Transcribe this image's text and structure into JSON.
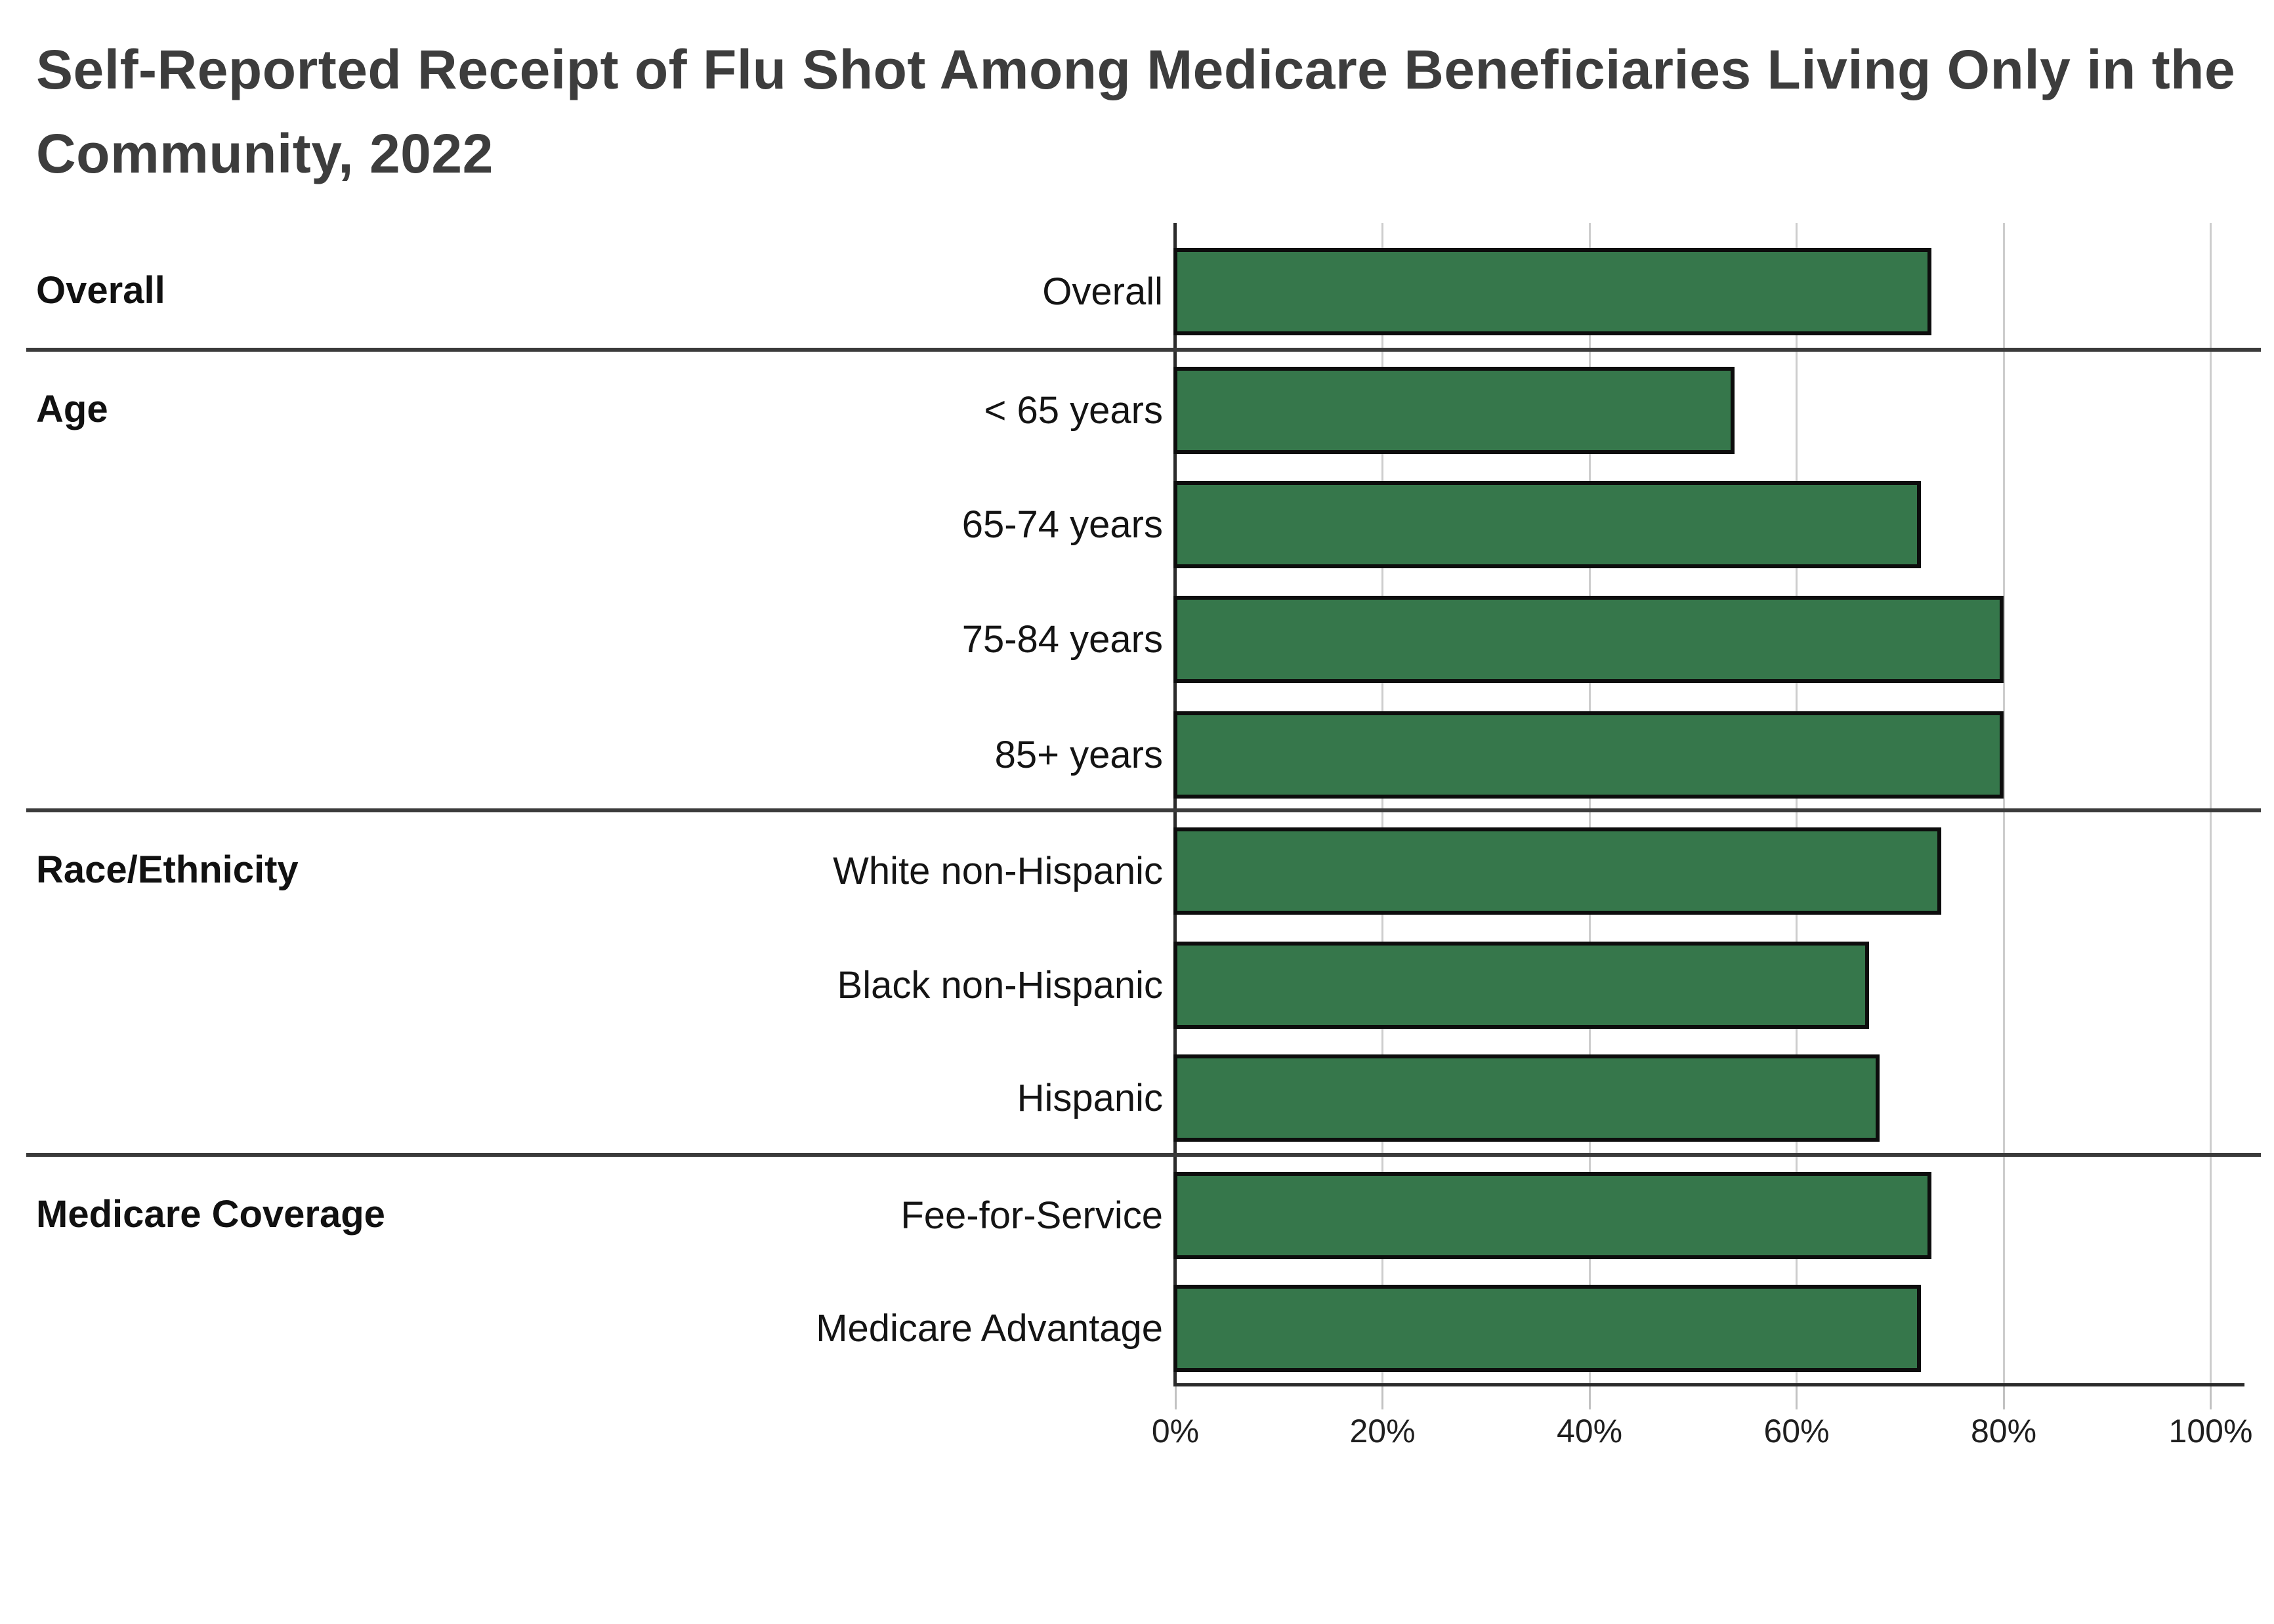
{
  "title": {
    "line1": "Self-Reported Receipt of Flu Shot Among Medicare Beneficiaries Living Only in the",
    "line2": "Community, 2022"
  },
  "chart_data": {
    "type": "bar",
    "orientation": "horizontal",
    "title": "Self-Reported Receipt of Flu Shot Among Medicare Beneficiaries Living Only in the Community, 2022",
    "xlabel": "",
    "ylabel": "",
    "xlim": [
      0,
      100
    ],
    "x_tick_labels": [
      "0%",
      "20%",
      "40%",
      "60%",
      "80%",
      "100%"
    ],
    "x_tick_values": [
      0,
      20,
      40,
      60,
      80,
      100
    ],
    "grid": true,
    "legend": false,
    "unit": "percent",
    "bar_color": "#36774B",
    "bar_border_color": "#0d0d0d",
    "groups": [
      {
        "label": "Overall",
        "rows": [
          {
            "category": "Overall",
            "value": 73
          }
        ]
      },
      {
        "label": "Age",
        "rows": [
          {
            "category": "< 65 years",
            "value": 54
          },
          {
            "category": "65-74 years",
            "value": 72
          },
          {
            "category": "75-84 years",
            "value": 80
          },
          {
            "category": "85+ years",
            "value": 80
          }
        ]
      },
      {
        "label": "Race/Ethnicity",
        "rows": [
          {
            "category": "White non-Hispanic",
            "value": 74
          },
          {
            "category": "Black non-Hispanic",
            "value": 67
          },
          {
            "category": "Hispanic",
            "value": 68
          }
        ]
      },
      {
        "label": "Medicare Coverage",
        "rows": [
          {
            "category": "Fee-for-Service",
            "value": 73
          },
          {
            "category": "Medicare Advantage",
            "value": 72
          }
        ]
      }
    ]
  }
}
